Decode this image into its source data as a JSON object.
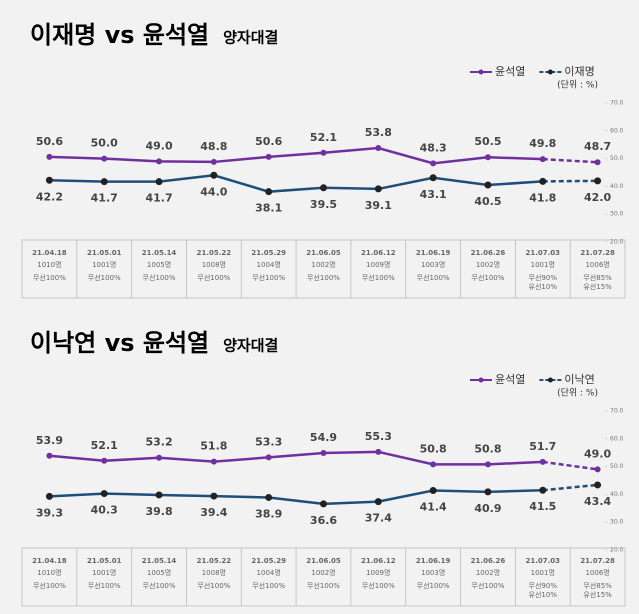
{
  "chart_data": [
    {
      "type": "line",
      "title": "이재명 vs 윤석열",
      "subtitle": "양자대결",
      "unit": "(단위 : %)",
      "categories": [
        "21.04.18",
        "21.05.01",
        "21.05.14",
        "21.05.22",
        "21.05.29",
        "21.06.05",
        "21.06.12",
        "21.06.19",
        "21.06.26",
        "21.07.03",
        "21.07.28"
      ],
      "samples": [
        "1010명",
        "1001명",
        "1005명",
        "1008명",
        "1004명",
        "1002명",
        "1009명",
        "1003명",
        "1002명",
        "1001명",
        "1006명"
      ],
      "methods": [
        [
          "무선100%"
        ],
        [
          "무선100%"
        ],
        [
          "무선100%"
        ],
        [
          "무선100%"
        ],
        [
          "무선100%"
        ],
        [
          "무선100%"
        ],
        [
          "무선100%"
        ],
        [
          "무선100%"
        ],
        [
          "무선100%"
        ],
        [
          "무선90%",
          "유선10%"
        ],
        [
          "무선85%",
          "유선15%"
        ]
      ],
      "series": [
        {
          "name": "윤석열",
          "color": "#7030a0",
          "values": [
            50.6,
            50.0,
            49.0,
            48.8,
            50.6,
            52.1,
            53.8,
            48.3,
            50.5,
            49.8,
            48.7
          ],
          "value_labels": [
            "50.6",
            "50.0",
            "49.0",
            "48.8",
            "50.6",
            "52.1",
            "53.8",
            "48.3",
            "50.5",
            "49.8",
            "48.7"
          ]
        },
        {
          "name": "이재명",
          "color": "#1f4e79",
          "values": [
            42.2,
            41.7,
            41.7,
            44.0,
            38.1,
            39.5,
            39.1,
            43.1,
            40.5,
            41.8,
            42.0
          ],
          "value_labels": [
            "42.2",
            "41.7",
            "41.7",
            "44.0",
            "38.1",
            "39.5",
            "39.1",
            "43.1",
            "40.5",
            "41.8",
            "42.0"
          ]
        }
      ],
      "ylim": [
        20,
        70
      ],
      "yticks": [
        {
          "value": 20,
          "label": "20.0"
        },
        {
          "value": 30,
          "label": "30.0"
        },
        {
          "value": 40,
          "label": "40.0"
        },
        {
          "value": 50,
          "label": "50.0"
        },
        {
          "value": 60,
          "label": "60.0"
        },
        {
          "value": 70,
          "label": "70.0"
        }
      ],
      "last_segment_dashed": true
    },
    {
      "type": "line",
      "title": "이낙연 vs 윤석열",
      "subtitle": "양자대결",
      "unit": "(단위 : %)",
      "categories": [
        "21.04.18",
        "21.05.01",
        "21.05.14",
        "21.05.22",
        "21.05.29",
        "21.06.05",
        "21.06.12",
        "21.06.19",
        "21.06.26",
        "21.07.03",
        "21.07.28"
      ],
      "samples": [
        "1010명",
        "1001명",
        "1005명",
        "1008명",
        "1004명",
        "1002명",
        "1009명",
        "1003명",
        "1002명",
        "1001명",
        "1006명"
      ],
      "methods": [
        [
          "무선100%"
        ],
        [
          "무선100%"
        ],
        [
          "무선100%"
        ],
        [
          "무선100%"
        ],
        [
          "무선100%"
        ],
        [
          "무선100%"
        ],
        [
          "무선100%"
        ],
        [
          "무선100%"
        ],
        [
          "무선100%"
        ],
        [
          "무선90%",
          "유선10%"
        ],
        [
          "무선85%",
          "유선15%"
        ]
      ],
      "series": [
        {
          "name": "윤석열",
          "color": "#7030a0",
          "values": [
            53.9,
            52.1,
            53.2,
            51.8,
            53.3,
            54.9,
            55.3,
            50.8,
            50.8,
            51.7,
            49.0
          ],
          "value_labels": [
            "53.9",
            "52.1",
            "53.2",
            "51.8",
            "53.3",
            "54.9",
            "55.3",
            "50.8",
            "50.8",
            "51.7",
            "49.0"
          ]
        },
        {
          "name": "이낙연",
          "color": "#1f4e79",
          "values": [
            39.3,
            40.3,
            39.8,
            39.4,
            38.9,
            36.6,
            37.4,
            41.4,
            40.9,
            41.5,
            43.4
          ],
          "value_labels": [
            "39.3",
            "40.3",
            "39.8",
            "39.4",
            "38.9",
            "36.6",
            "37.4",
            "41.4",
            "40.9",
            "41.5",
            "43.4"
          ]
        }
      ],
      "ylim": [
        20,
        70
      ],
      "yticks": [
        {
          "value": 20,
          "label": "20.0"
        },
        {
          "value": 30,
          "label": "30.0"
        },
        {
          "value": 40,
          "label": "40.0"
        },
        {
          "value": 50,
          "label": "50.0"
        },
        {
          "value": 60,
          "label": "60.0"
        },
        {
          "value": 70,
          "label": "70.0"
        }
      ],
      "last_segment_dashed": true
    }
  ]
}
